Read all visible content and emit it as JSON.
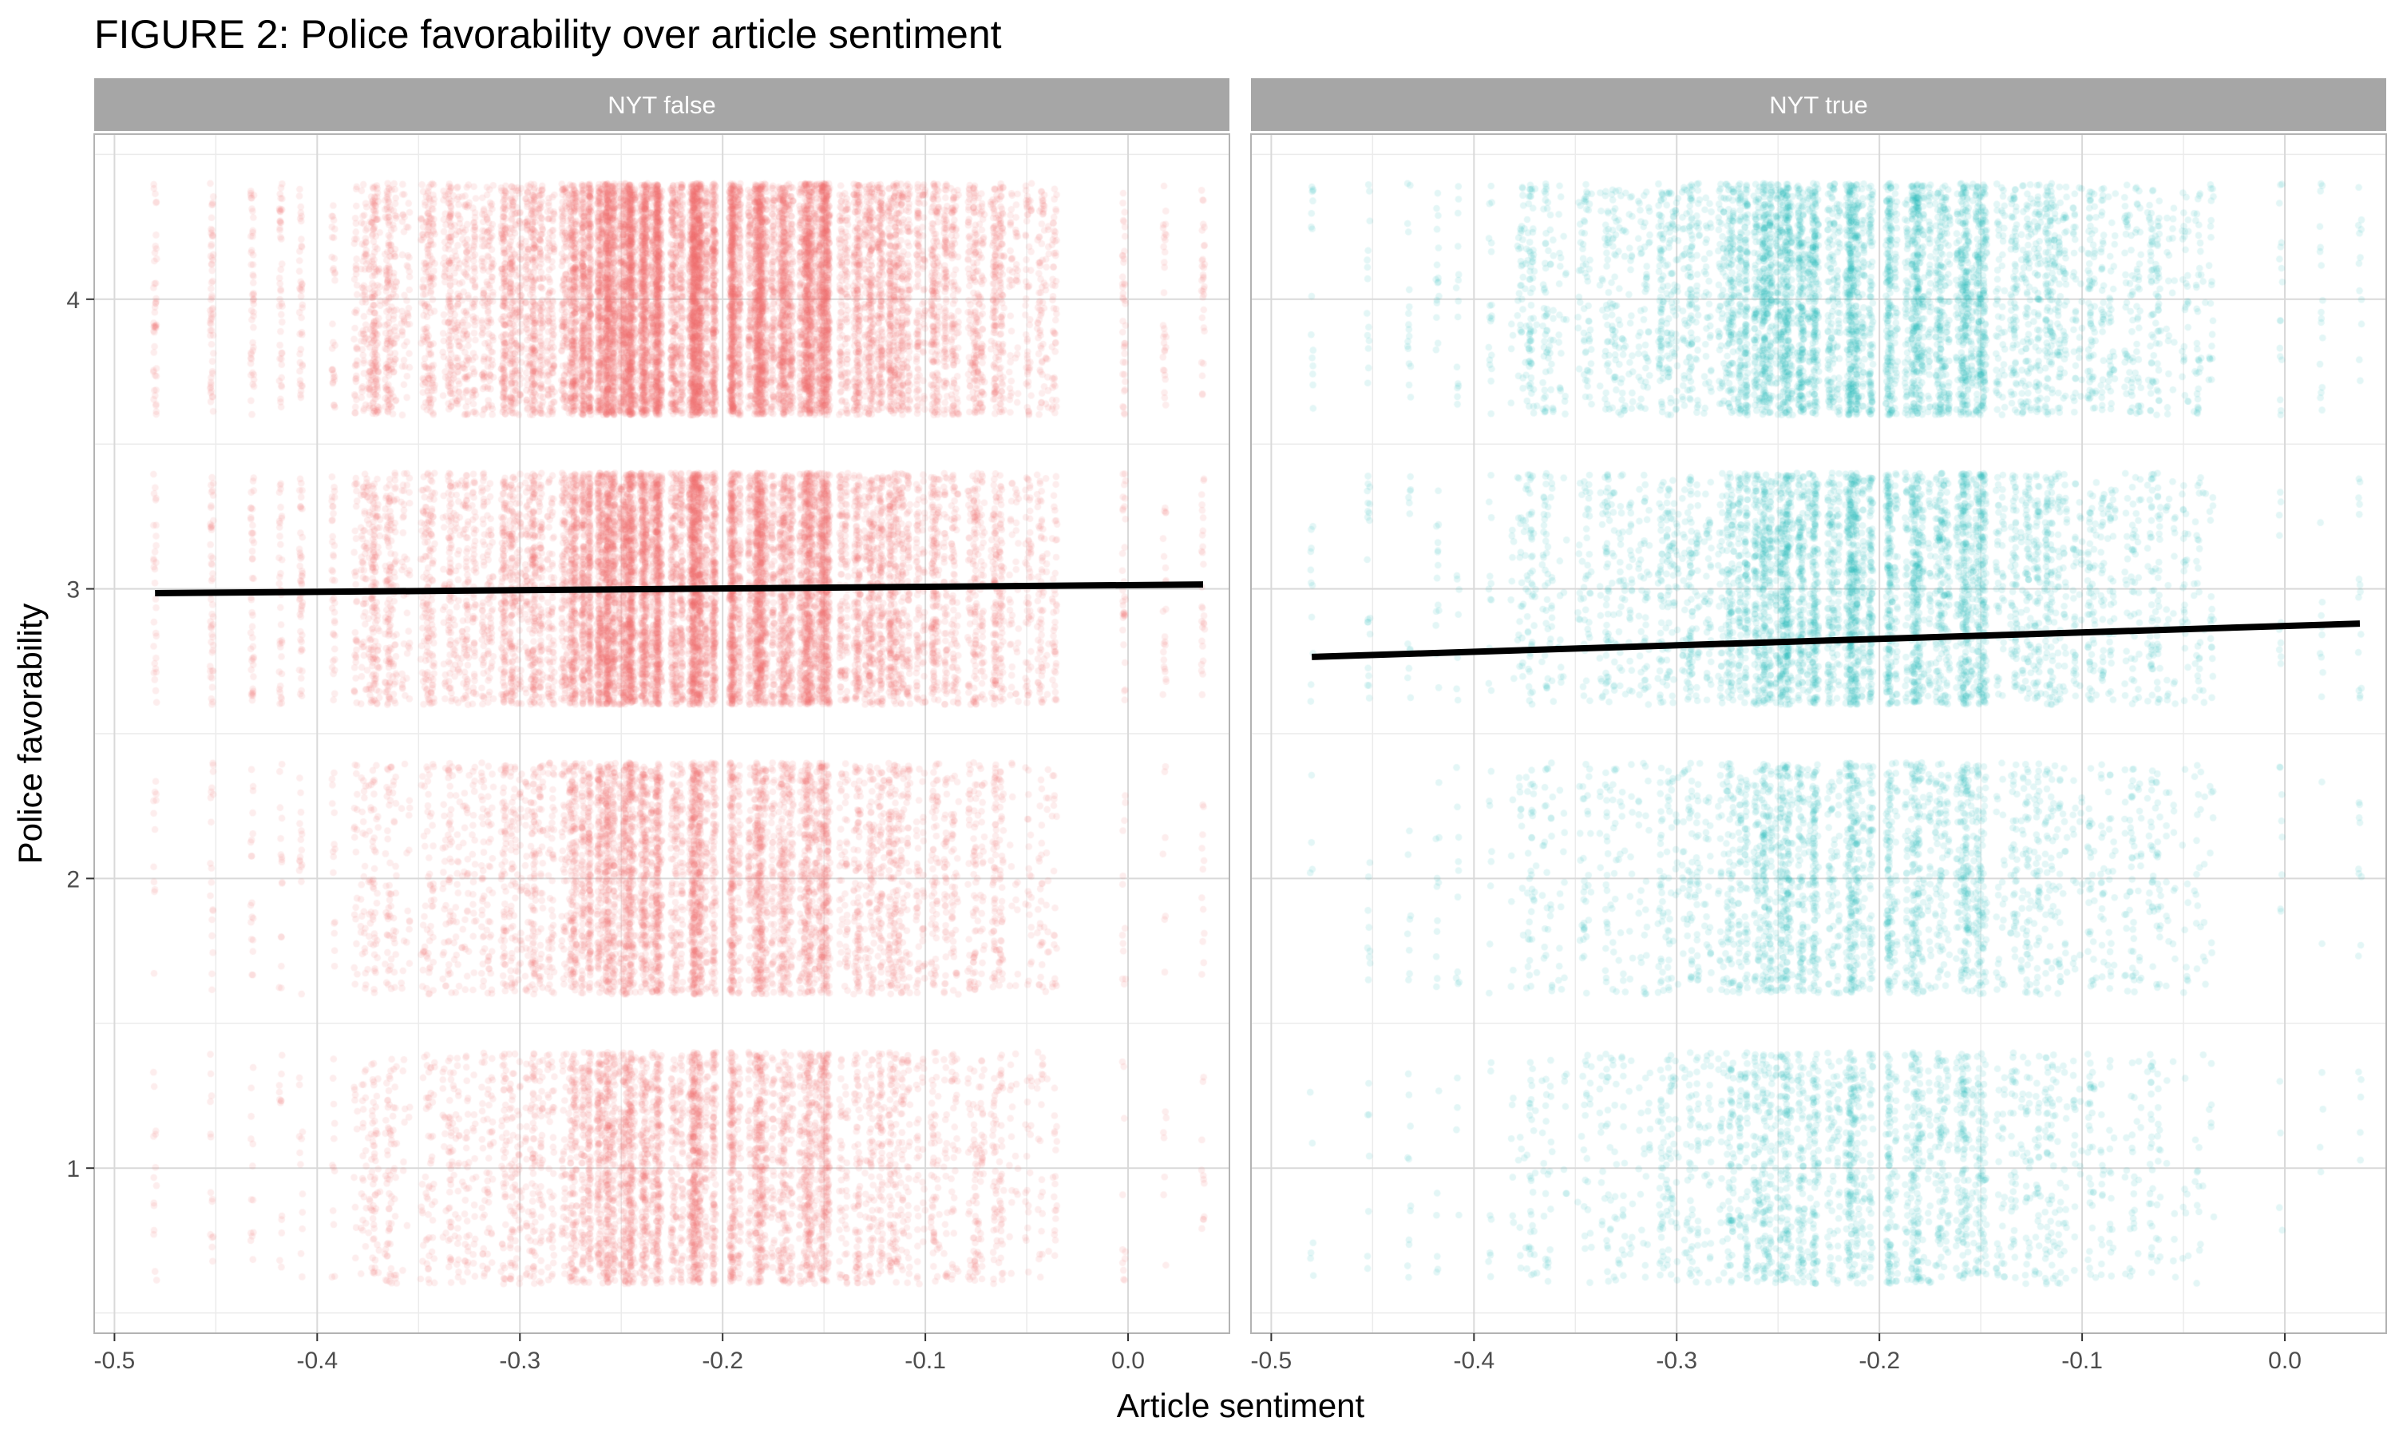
{
  "chart_data": {
    "type": "scatter",
    "title": "FIGURE 2: Police favorability over article sentiment",
    "xlabel": "Article sentiment",
    "ylabel": "Police favorability",
    "xlim": [
      -0.51,
      0.05
    ],
    "ylim": [
      0.43,
      4.57
    ],
    "x_ticks": [
      -0.5,
      -0.4,
      -0.3,
      -0.2,
      -0.1,
      0.0
    ],
    "x_tick_labels": [
      "-0.5",
      "-0.4",
      "-0.3",
      "-0.2",
      "-0.1",
      "0.0"
    ],
    "y_ticks": [
      1,
      2,
      3,
      4
    ],
    "y_tick_labels": [
      "1",
      "2",
      "3",
      "4"
    ],
    "grid": true,
    "jitter_y": 0.4,
    "point_alpha": 0.12,
    "sentiment_x_range": [
      -0.48,
      0.037
    ],
    "panels": [
      {
        "strip_label": "NYT false",
        "color": "#F06A6A",
        "point_counts": {
          "1": 5200,
          "2": 6000,
          "3": 12000,
          "4": 15000
        },
        "fit_line": {
          "x": [
            -0.48,
            0.037
          ],
          "y": [
            2.985,
            3.015
          ]
        }
      },
      {
        "strip_label": "NYT true",
        "color": "#1CB5B5",
        "point_counts": {
          "1": 2400,
          "2": 2800,
          "3": 4800,
          "4": 5600
        },
        "fit_line": {
          "x": [
            -0.48,
            0.037
          ],
          "y": [
            2.765,
            2.88
          ]
        }
      }
    ]
  }
}
